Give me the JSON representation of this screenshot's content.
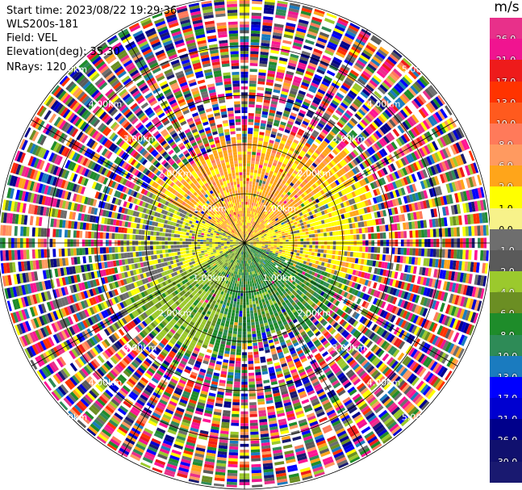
{
  "info": {
    "start_time": "Start time: 2023/08/22 19:29:36",
    "instrument": "WLS200s-181",
    "field": "Field: VEL",
    "elevation": "Elevation(deg): 35.30",
    "nrays": "NRays: 120"
  },
  "colorbar": {
    "unit": "m/s",
    "ticks": [
      "26.0",
      "21.0",
      "17.0",
      "13.0",
      "10.0",
      "8.0",
      "6.0",
      "2.0",
      "1.0",
      "0.0",
      "-1.0",
      "-2.0",
      "-4.0",
      "-6.0",
      "-8.0",
      "-10.0",
      "-13.0",
      "-17.0",
      "-21.0",
      "-26.0",
      "-30.0"
    ],
    "colors": [
      "#e8308a",
      "#f01490",
      "#ee1b1b",
      "#ff3300",
      "#ff5a1e",
      "#ff7a5a",
      "#ff9a60",
      "#ffa51a",
      "#ffff00",
      "#f7f28a",
      "#6e6e6e",
      "#5a5a5a",
      "#9bc92d",
      "#6b8e23",
      "#1e8c2a",
      "#2e8b57",
      "#1a7bbf",
      "#0000ff",
      "#0000d0",
      "#00008b",
      "#10106e",
      "#191970"
    ]
  },
  "chart_data": {
    "type": "heatmap",
    "projection": "polar PPI",
    "field": "VEL",
    "units": "m/s",
    "range_rings_km": [
      1,
      2,
      3,
      4,
      5
    ],
    "range_ring_labels": [
      "1.00km",
      "2.00km",
      "3.00km",
      "4.00km",
      "5.00km"
    ],
    "n_rays": 120,
    "elevation_deg": 35.3,
    "color_range": [
      -30,
      26
    ],
    "sectors": [
      {
        "azimuth": "north-west to north-east",
        "range_km": [
          0,
          2.5
        ],
        "velocity_ms": [
          2,
          8
        ]
      },
      {
        "azimuth": "west",
        "range_km": [
          0,
          2.2
        ],
        "velocity_ms": [
          -1,
          1
        ]
      },
      {
        "azimuth": "south",
        "range_km": [
          0,
          2.5
        ],
        "velocity_ms": [
          -8,
          -2
        ]
      },
      {
        "azimuth": "all",
        "range_km": [
          2.5,
          5.5
        ],
        "velocity_ms": [
          -30,
          26
        ]
      }
    ]
  }
}
